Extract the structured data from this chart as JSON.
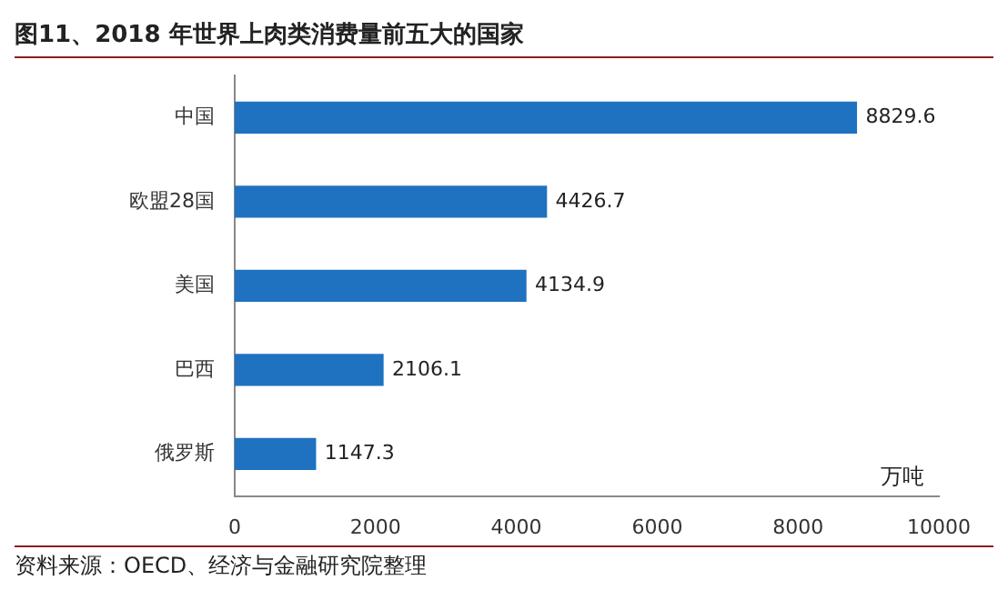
{
  "chart_data": {
    "type": "bar",
    "orientation": "horizontal",
    "title": "图11、2018 年世界上肉类消费量前五大的国家",
    "xlabel": "万吨",
    "categories": [
      "中国",
      "欧盟28国",
      "美国",
      "巴西",
      "俄罗斯"
    ],
    "values": [
      8829.6,
      4426.7,
      4134.9,
      2106.1,
      1147.3
    ],
    "color": "#1f72c0",
    "xlim": [
      0,
      10000
    ],
    "xticks": [
      0,
      2000,
      4000,
      6000,
      8000,
      10000
    ],
    "grid": false,
    "data_labels": true,
    "annotations": [
      "资料来源：OECD、经济与金融研究院整理"
    ]
  }
}
